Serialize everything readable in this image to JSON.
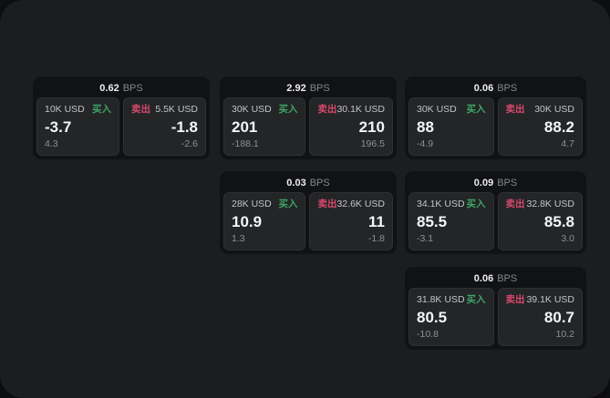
{
  "colors": {
    "buy_green": "#3da564",
    "sell_red": "#d7496c",
    "screen_bg": "#1c1d1f",
    "card_bg": "#111214",
    "tile_bg": "#242527"
  },
  "cards": [
    {
      "header": {
        "value": "0.62",
        "unit": "BPS"
      },
      "buy": {
        "amount": "10K USD",
        "label": "买入",
        "value": "-3.7",
        "sub": "4.3"
      },
      "sell": {
        "label": "卖出",
        "amount": "5.5K USD",
        "value": "-1.8",
        "sub": "-2.6"
      }
    },
    {
      "header": {
        "value": "2.92",
        "unit": "BPS"
      },
      "buy": {
        "amount": "30K USD",
        "label": "买入",
        "value": "201",
        "sub": "-188.1"
      },
      "sell": {
        "label": "卖出",
        "amount": "30.1K USD",
        "value": "210",
        "sub": "196.5"
      }
    },
    {
      "header": {
        "value": "0.06",
        "unit": "BPS"
      },
      "buy": {
        "amount": "30K USD",
        "label": "买入",
        "value": "88",
        "sub": "-4.9"
      },
      "sell": {
        "label": "卖出",
        "amount": "30K USD",
        "value": "88.2",
        "sub": "4.7"
      }
    },
    {
      "header": {
        "value": "0.03",
        "unit": "BPS"
      },
      "buy": {
        "amount": "28K USD",
        "label": "买入",
        "value": "10.9",
        "sub": "1.3"
      },
      "sell": {
        "label": "卖出",
        "amount": "32.6K USD",
        "value": "11",
        "sub": "-1.8"
      }
    },
    {
      "header": {
        "value": "0.09",
        "unit": "BPS"
      },
      "buy": {
        "amount": "34.1K USD",
        "label": "买入",
        "value": "85.5",
        "sub": "-3.1"
      },
      "sell": {
        "label": "卖出",
        "amount": "32.8K USD",
        "value": "85.8",
        "sub": "3.0"
      }
    },
    {
      "header": {
        "value": "0.06",
        "unit": "BPS"
      },
      "buy": {
        "amount": "31.8K USD",
        "label": "买入",
        "value": "80.5",
        "sub": "-10.8"
      },
      "sell": {
        "label": "卖出",
        "amount": "39.1K USD",
        "value": "80.7",
        "sub": "10.2"
      }
    }
  ]
}
